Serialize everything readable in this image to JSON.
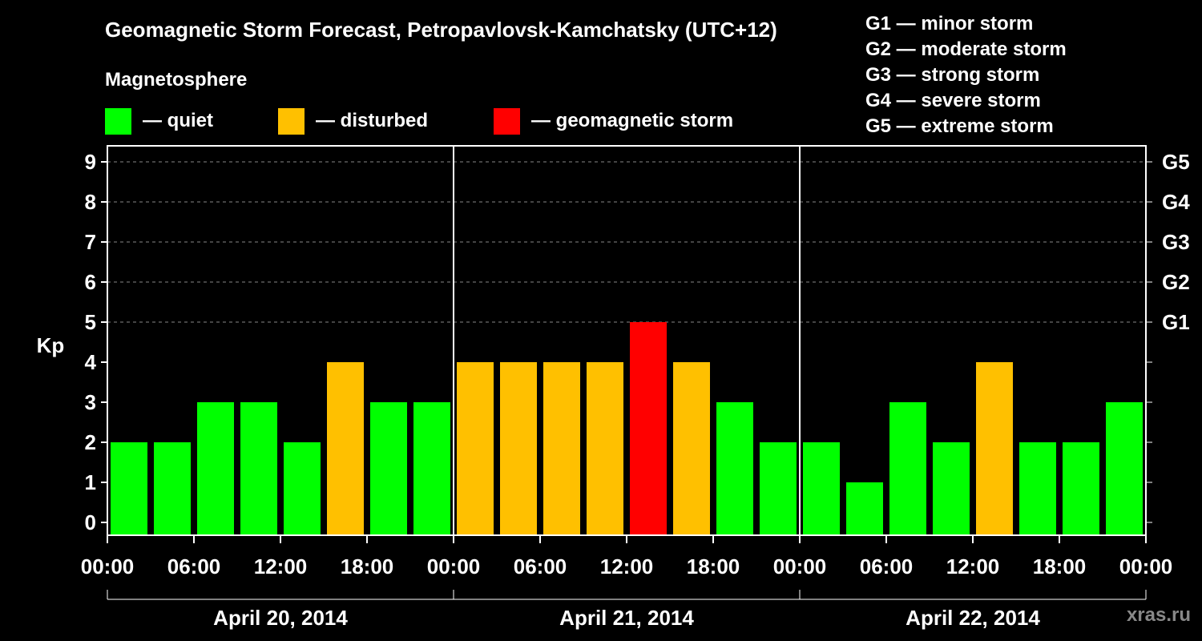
{
  "title": "Geomagnetic Storm Forecast, Petropavlovsk-Kamchatsky (UTC+12)",
  "subtitle": "Magnetosphere",
  "legend": [
    {
      "label": "— quiet",
      "color": "#00ff00"
    },
    {
      "label": "— disturbed",
      "color": "#ffc000"
    },
    {
      "label": "— geomagnetic storm",
      "color": "#ff0000"
    }
  ],
  "storm_levels": [
    "G1 — minor storm",
    "G2 — moderate storm",
    "G3 — strong storm",
    "G4 — severe storm",
    "G5 — extreme storm"
  ],
  "watermark": "xras.ru",
  "colors": {
    "quiet": "#00ff00",
    "disturbed": "#ffc000",
    "storm": "#ff0000",
    "grid": "#888888"
  },
  "chart_data": {
    "type": "bar",
    "ylabel": "Kp",
    "ylim": [
      0,
      9
    ],
    "yticks": [
      "0",
      "1",
      "2",
      "3",
      "4",
      "5",
      "6",
      "7",
      "8",
      "9"
    ],
    "right_ticks": [
      {
        "value": 5,
        "label": "G1"
      },
      {
        "value": 6,
        "label": "G2"
      },
      {
        "value": 7,
        "label": "G3"
      },
      {
        "value": 8,
        "label": "G4"
      },
      {
        "value": 9,
        "label": "G5"
      }
    ],
    "grid": true,
    "x_tick_labels": [
      "00:00",
      "06:00",
      "12:00",
      "18:00",
      "00:00",
      "06:00",
      "12:00",
      "18:00",
      "00:00",
      "06:00",
      "12:00",
      "18:00",
      "00:00"
    ],
    "days": [
      "April 20, 2014",
      "April 21, 2014",
      "April 22, 2014"
    ],
    "values": [
      2,
      2,
      3,
      3,
      2,
      4,
      3,
      3,
      4,
      4,
      4,
      4,
      5,
      4,
      3,
      2,
      2,
      1,
      3,
      2,
      4,
      2,
      2,
      3
    ],
    "status": [
      "quiet",
      "quiet",
      "quiet",
      "quiet",
      "quiet",
      "disturbed",
      "quiet",
      "quiet",
      "disturbed",
      "disturbed",
      "disturbed",
      "disturbed",
      "storm",
      "disturbed",
      "quiet",
      "quiet",
      "quiet",
      "quiet",
      "quiet",
      "quiet",
      "disturbed",
      "quiet",
      "quiet",
      "quiet"
    ]
  }
}
